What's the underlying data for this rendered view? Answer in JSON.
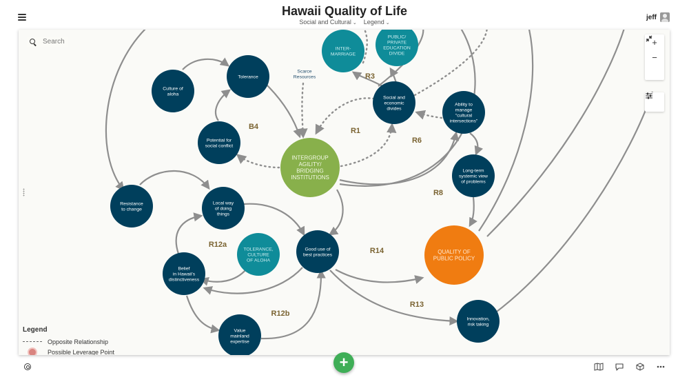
{
  "header": {
    "title": "Hawaii Quality of Life",
    "menus": [
      "Social and Cultural",
      "Legend"
    ],
    "user": "jeff"
  },
  "search": {
    "placeholder": "Search"
  },
  "toolbar": {
    "zoom_in": "+",
    "zoom_out": "−"
  },
  "legend": {
    "title": "Legend",
    "items": [
      "Opposite Relationship",
      "Possible Leverage Point"
    ]
  },
  "colors": {
    "node_dark": "#003f5c",
    "node_teal": "#0f8c99",
    "node_green": "#88b04b",
    "node_orange": "#f07c11",
    "link": "#8e8e8e",
    "loop_label": "#7a6331",
    "fab": "#3fae57"
  },
  "diagram": {
    "nodes": [
      {
        "id": "culture_aloha",
        "label": "Culture of\naloha",
        "kind": "dark"
      },
      {
        "id": "tolerance",
        "label": "Tolerance",
        "kind": "dark"
      },
      {
        "id": "inter_marriage",
        "label": "INTER-\nMARRIAGE",
        "kind": "teal"
      },
      {
        "id": "public_private",
        "label": "PUBLIC/\nPRIVATE\nEDUCATION\nDIVIDE",
        "kind": "teal"
      },
      {
        "id": "scarce_resources",
        "label": "Scarce\nResources",
        "kind": "text"
      },
      {
        "id": "social_econ",
        "label": "Social and\neconomic\ndivides",
        "kind": "dark"
      },
      {
        "id": "ability_manage",
        "label": "Ability to\nmanage\n\"cultural\nintersections\"",
        "kind": "dark"
      },
      {
        "id": "potential_conflict",
        "label": "Potential for\nsocial conflict",
        "kind": "dark"
      },
      {
        "id": "intergroup",
        "label": "INTERGROUP\nAGILITY/\nBRIDGING\nINSTITUTIONS",
        "kind": "green"
      },
      {
        "id": "long_term",
        "label": "Long-term\nsystemic view\nof problems",
        "kind": "dark"
      },
      {
        "id": "resistance",
        "label": "Resistance\nto change",
        "kind": "dark"
      },
      {
        "id": "local_way",
        "label": "Local way\nof doing\nthings",
        "kind": "dark"
      },
      {
        "id": "tolerance_culture",
        "label": "TOLERANCE,\nCULTURE\nOF ALOHA",
        "kind": "teal"
      },
      {
        "id": "good_use",
        "label": "Good use of\nbest practices",
        "kind": "dark"
      },
      {
        "id": "quality_policy",
        "label": "QUALITY OF\nPUBLIC POLICY",
        "kind": "orange"
      },
      {
        "id": "belief",
        "label": "Belief\nin Hawaii's\ndistinctiveness",
        "kind": "dark"
      },
      {
        "id": "value_mainland",
        "label": "Value\nmainland\nexpertise",
        "kind": "dark"
      },
      {
        "id": "innovation",
        "label": "Innovation,\nrisk taking",
        "kind": "dark"
      }
    ],
    "loops": [
      "B4",
      "R1",
      "R3",
      "R6",
      "R8",
      "R12a",
      "R12b",
      "R13",
      "R14"
    ],
    "links": [
      {
        "from": "culture_aloha",
        "to": "tolerance",
        "style": "solid"
      },
      {
        "from": "tolerance",
        "to": "intergroup",
        "style": "solid"
      },
      {
        "from": "potential_conflict",
        "to": "tolerance",
        "style": "solid"
      },
      {
        "from": "intergroup",
        "to": "potential_conflict",
        "style": "dotted"
      },
      {
        "from": "scarce_resources",
        "to": "intergroup",
        "style": "dotted"
      },
      {
        "from": "social_econ",
        "to": "intergroup",
        "style": "dotted"
      },
      {
        "from": "intergroup",
        "to": "social_econ",
        "style": "dotted"
      },
      {
        "from": "social_econ",
        "to": "inter_marriage",
        "style": "solid"
      },
      {
        "from": "social_econ",
        "to": "public_private",
        "style": "solid"
      },
      {
        "from": "ability_manage",
        "to": "social_econ",
        "style": "dotted"
      },
      {
        "from": "intergroup",
        "to": "ability_manage",
        "style": "solid"
      },
      {
        "from": "ability_manage",
        "to": "long_term",
        "style": "solid"
      },
      {
        "from": "long_term",
        "to": "quality_policy",
        "style": "solid"
      },
      {
        "from": "intergroup",
        "to": "good_use",
        "style": "solid"
      },
      {
        "from": "resistance",
        "to": "local_way",
        "style": "solid"
      },
      {
        "from": "local_way",
        "to": "good_use",
        "style": "solid"
      },
      {
        "from": "belief",
        "to": "local_way",
        "style": "solid"
      },
      {
        "from": "tolerance_culture",
        "to": "belief",
        "style": "solid"
      },
      {
        "from": "good_use",
        "to": "belief",
        "style": "solid"
      },
      {
        "from": "belief",
        "to": "value_mainland",
        "style": "solid"
      },
      {
        "from": "value_mainland",
        "to": "good_use",
        "style": "solid"
      },
      {
        "from": "good_use",
        "to": "quality_policy",
        "style": "solid"
      },
      {
        "from": "good_use",
        "to": "innovation",
        "style": "solid"
      }
    ]
  }
}
